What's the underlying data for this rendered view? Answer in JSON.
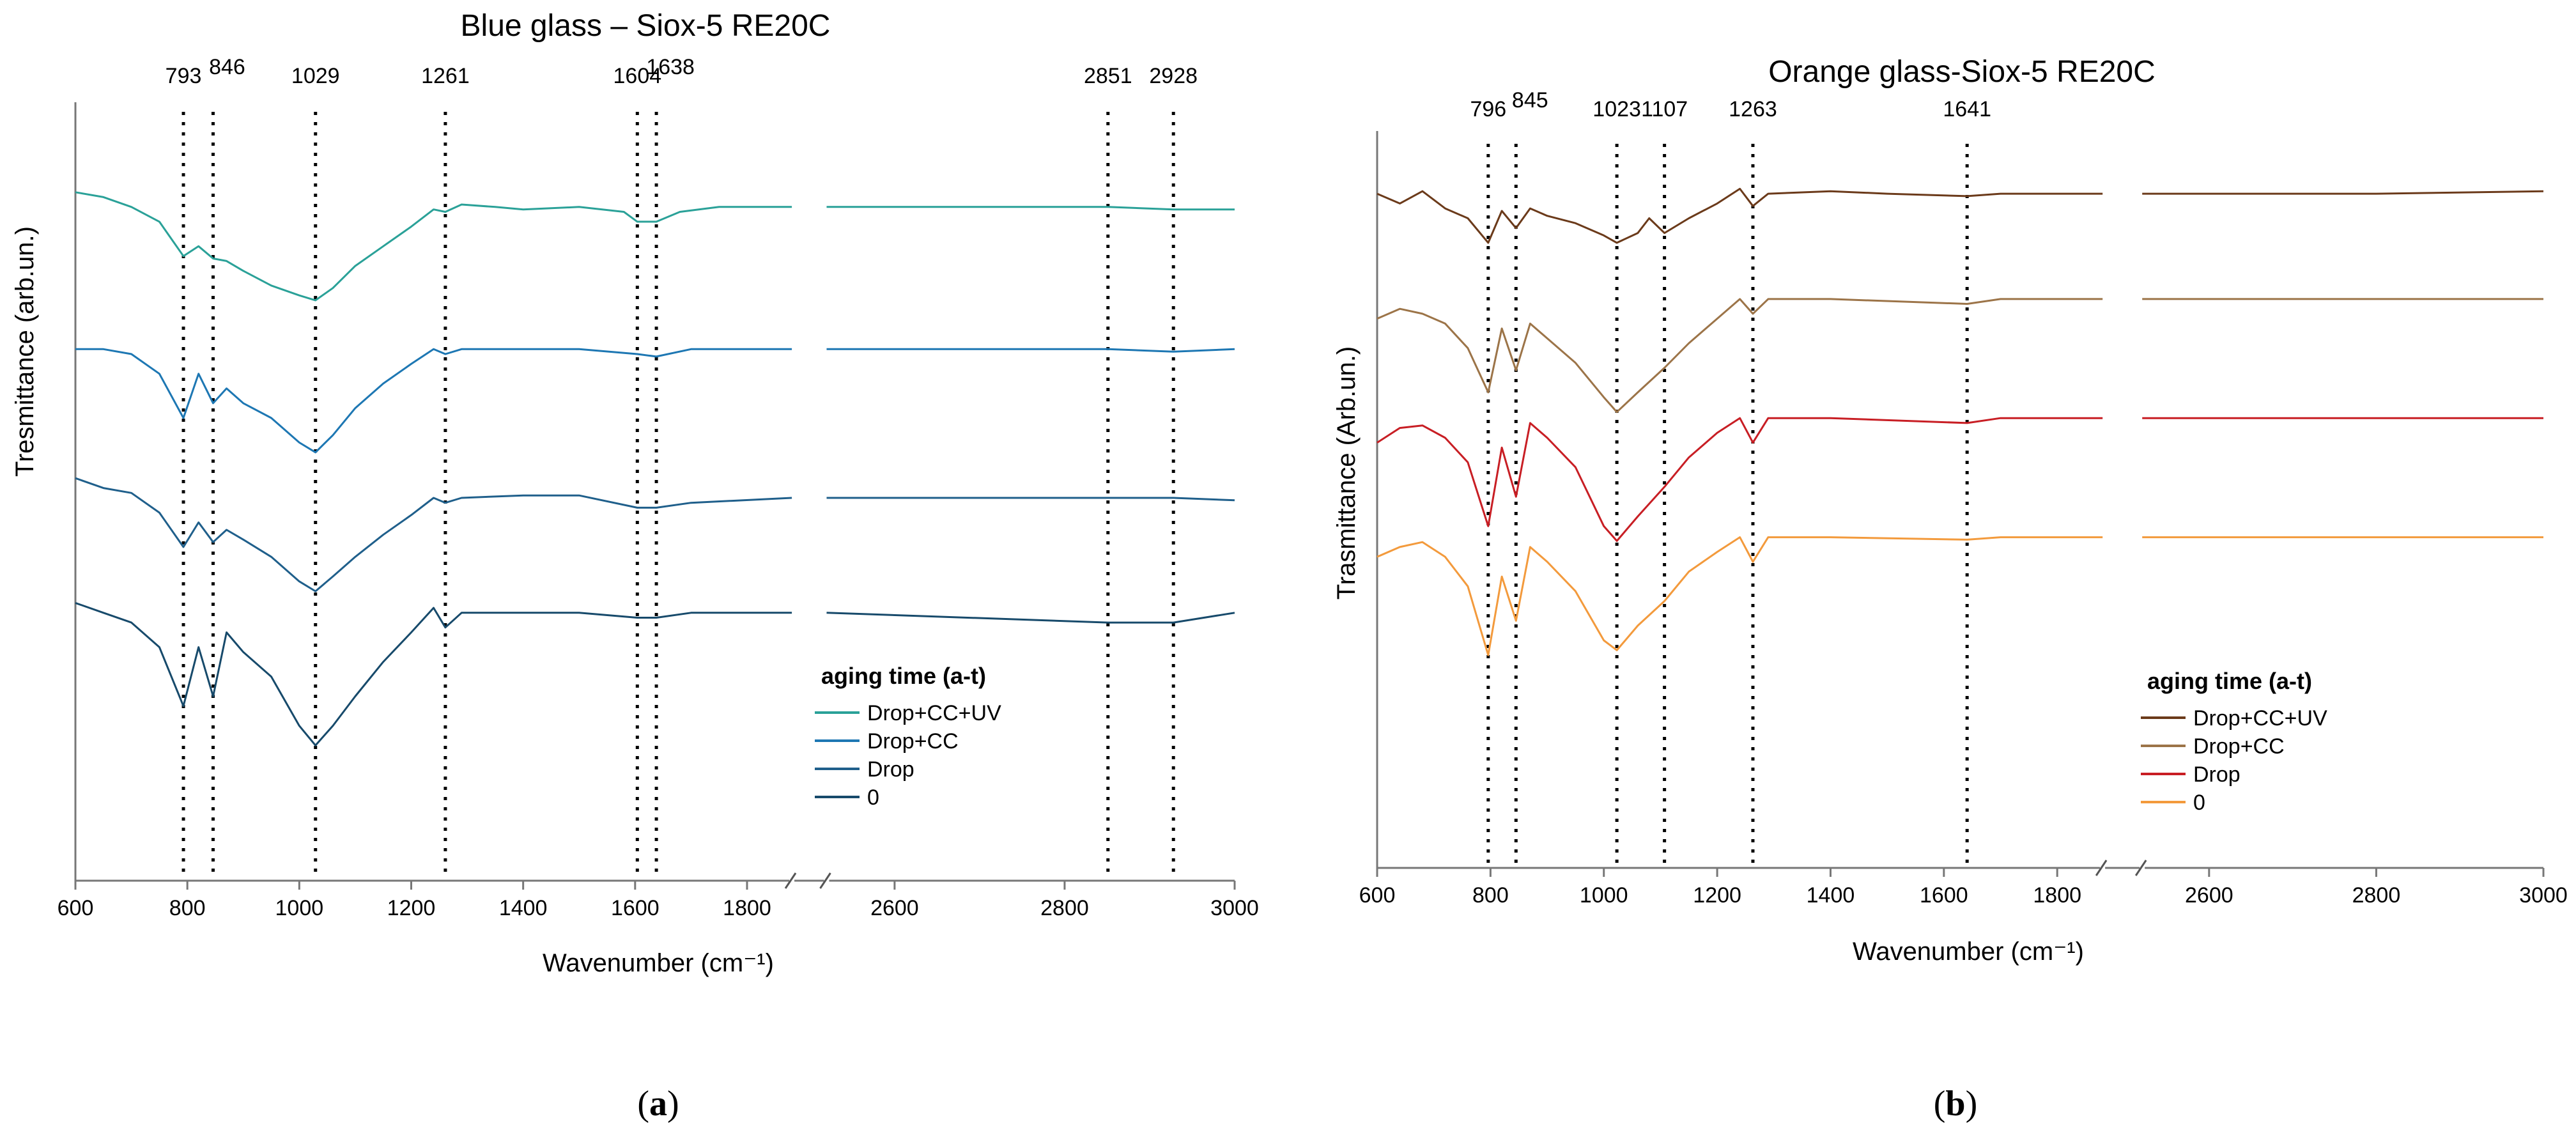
{
  "figure": {
    "panel_labels": [
      "(a)",
      "(b)"
    ],
    "panel_letters": [
      "a",
      "b"
    ]
  },
  "chart_data": [
    {
      "type": "line",
      "title": "Blue glass – Siox-5 RE20C",
      "xlabel": "Wavenumber (cm⁻¹)",
      "ylabel": "Tresmittance (arb.un.)",
      "x_ticks": [
        600,
        800,
        1000,
        1200,
        1400,
        1600,
        1800,
        2600,
        2800,
        3000
      ],
      "x_break": [
        1880,
        2520
      ],
      "xlim": [
        600,
        3000
      ],
      "ylim": [
        0,
        1
      ],
      "legend_title": "aging time (a-t)",
      "legend_position": "right",
      "peak_labels": [
        793,
        846,
        1029,
        1261,
        1604,
        1638,
        2851,
        2928
      ],
      "series": [
        {
          "name": "Drop+CC+UV",
          "color": "#2aa198",
          "offset": 0.0,
          "points": [
            [
              600,
              0.08
            ],
            [
              650,
              0.1
            ],
            [
              700,
              0.14
            ],
            [
              750,
              0.2
            ],
            [
              793,
              0.34
            ],
            [
              820,
              0.3
            ],
            [
              846,
              0.35
            ],
            [
              870,
              0.36
            ],
            [
              900,
              0.4
            ],
            [
              950,
              0.46
            ],
            [
              1000,
              0.5
            ],
            [
              1029,
              0.52
            ],
            [
              1060,
              0.47
            ],
            [
              1100,
              0.38
            ],
            [
              1150,
              0.3
            ],
            [
              1200,
              0.22
            ],
            [
              1240,
              0.15
            ],
            [
              1261,
              0.16
            ],
            [
              1290,
              0.13
            ],
            [
              1350,
              0.14
            ],
            [
              1400,
              0.15
            ],
            [
              1500,
              0.14
            ],
            [
              1580,
              0.16
            ],
            [
              1604,
              0.2
            ],
            [
              1638,
              0.2
            ],
            [
              1680,
              0.16
            ],
            [
              1750,
              0.14
            ],
            [
              1880,
              0.14
            ],
            [
              2520,
              0.14
            ],
            [
              2700,
              0.14
            ],
            [
              2851,
              0.14
            ],
            [
              2928,
              0.15
            ],
            [
              3000,
              0.15
            ]
          ]
        },
        {
          "name": "Drop+CC",
          "color": "#1d77b3",
          "offset": 0.18,
          "points": [
            [
              600,
              0.2
            ],
            [
              650,
              0.2
            ],
            [
              700,
              0.22
            ],
            [
              750,
              0.3
            ],
            [
              793,
              0.48
            ],
            [
              820,
              0.3
            ],
            [
              846,
              0.42
            ],
            [
              870,
              0.36
            ],
            [
              900,
              0.42
            ],
            [
              950,
              0.48
            ],
            [
              1000,
              0.58
            ],
            [
              1029,
              0.62
            ],
            [
              1060,
              0.55
            ],
            [
              1100,
              0.44
            ],
            [
              1150,
              0.34
            ],
            [
              1200,
              0.26
            ],
            [
              1240,
              0.2
            ],
            [
              1261,
              0.22
            ],
            [
              1290,
              0.2
            ],
            [
              1350,
              0.2
            ],
            [
              1500,
              0.2
            ],
            [
              1604,
              0.22
            ],
            [
              1638,
              0.23
            ],
            [
              1700,
              0.2
            ],
            [
              1880,
              0.2
            ],
            [
              2520,
              0.2
            ],
            [
              2851,
              0.2
            ],
            [
              2928,
              0.21
            ],
            [
              3000,
              0.2
            ]
          ]
        },
        {
          "name": "Drop",
          "color": "#1f5f8b",
          "offset": 0.39,
          "points": [
            [
              600,
              0.12
            ],
            [
              650,
              0.16
            ],
            [
              700,
              0.18
            ],
            [
              750,
              0.26
            ],
            [
              793,
              0.4
            ],
            [
              820,
              0.3
            ],
            [
              846,
              0.38
            ],
            [
              870,
              0.33
            ],
            [
              900,
              0.37
            ],
            [
              950,
              0.44
            ],
            [
              1000,
              0.54
            ],
            [
              1029,
              0.58
            ],
            [
              1060,
              0.52
            ],
            [
              1100,
              0.44
            ],
            [
              1150,
              0.35
            ],
            [
              1200,
              0.27
            ],
            [
              1240,
              0.2
            ],
            [
              1261,
              0.22
            ],
            [
              1290,
              0.2
            ],
            [
              1400,
              0.19
            ],
            [
              1500,
              0.19
            ],
            [
              1604,
              0.24
            ],
            [
              1638,
              0.24
            ],
            [
              1700,
              0.22
            ],
            [
              1880,
              0.2
            ],
            [
              2520,
              0.2
            ],
            [
              2851,
              0.2
            ],
            [
              2928,
              0.2
            ],
            [
              3000,
              0.21
            ]
          ]
        },
        {
          "name": "0",
          "color": "#174a6b",
          "offset": 0.58,
          "points": [
            [
              600,
              0.08
            ],
            [
              650,
              0.12
            ],
            [
              700,
              0.16
            ],
            [
              750,
              0.26
            ],
            [
              793,
              0.5
            ],
            [
              820,
              0.26
            ],
            [
              846,
              0.46
            ],
            [
              870,
              0.2
            ],
            [
              900,
              0.28
            ],
            [
              950,
              0.38
            ],
            [
              1000,
              0.58
            ],
            [
              1029,
              0.66
            ],
            [
              1060,
              0.58
            ],
            [
              1100,
              0.46
            ],
            [
              1150,
              0.32
            ],
            [
              1200,
              0.2
            ],
            [
              1240,
              0.1
            ],
            [
              1261,
              0.18
            ],
            [
              1290,
              0.12
            ],
            [
              1400,
              0.12
            ],
            [
              1500,
              0.12
            ],
            [
              1604,
              0.14
            ],
            [
              1638,
              0.14
            ],
            [
              1700,
              0.12
            ],
            [
              1880,
              0.12
            ],
            [
              2520,
              0.12
            ],
            [
              2851,
              0.16
            ],
            [
              2928,
              0.16
            ],
            [
              3000,
              0.12
            ]
          ]
        }
      ]
    },
    {
      "type": "line",
      "title": "Orange glass-Siox-5 RE20C",
      "xlabel": "Wavenumber (cm⁻¹)",
      "ylabel": "Trasmittance (Arb.un.)",
      "x_ticks": [
        600,
        800,
        1000,
        1200,
        1400,
        1600,
        1800,
        2600,
        2800,
        3000
      ],
      "x_break": [
        1880,
        2520
      ],
      "xlim": [
        600,
        3000
      ],
      "ylim": [
        0,
        1
      ],
      "legend_title": "aging time (a-t)",
      "legend_position": "right",
      "peak_labels": [
        796,
        845,
        1023,
        1107,
        1263,
        1641
      ],
      "series": [
        {
          "name": "Drop+CC+UV",
          "color": "#6b3a1a",
          "offset": 0.0,
          "points": [
            [
              600,
              0.06
            ],
            [
              640,
              0.1
            ],
            [
              680,
              0.05
            ],
            [
              720,
              0.12
            ],
            [
              760,
              0.16
            ],
            [
              796,
              0.26
            ],
            [
              820,
              0.13
            ],
            [
              845,
              0.2
            ],
            [
              870,
              0.12
            ],
            [
              900,
              0.15
            ],
            [
              950,
              0.18
            ],
            [
              1000,
              0.23
            ],
            [
              1023,
              0.26
            ],
            [
              1060,
              0.22
            ],
            [
              1080,
              0.16
            ],
            [
              1107,
              0.22
            ],
            [
              1150,
              0.16
            ],
            [
              1200,
              0.1
            ],
            [
              1240,
              0.04
            ],
            [
              1263,
              0.11
            ],
            [
              1290,
              0.06
            ],
            [
              1400,
              0.05
            ],
            [
              1500,
              0.06
            ],
            [
              1641,
              0.07
            ],
            [
              1700,
              0.06
            ],
            [
              1880,
              0.06
            ],
            [
              2520,
              0.06
            ],
            [
              2800,
              0.06
            ],
            [
              3000,
              0.05
            ]
          ]
        },
        {
          "name": "Drop+CC",
          "color": "#9c7448",
          "offset": 0.16,
          "points": [
            [
              600,
              0.12
            ],
            [
              640,
              0.08
            ],
            [
              680,
              0.1
            ],
            [
              720,
              0.14
            ],
            [
              760,
              0.24
            ],
            [
              796,
              0.42
            ],
            [
              820,
              0.16
            ],
            [
              845,
              0.33
            ],
            [
              870,
              0.14
            ],
            [
              900,
              0.2
            ],
            [
              950,
              0.3
            ],
            [
              1000,
              0.44
            ],
            [
              1023,
              0.5
            ],
            [
              1060,
              0.42
            ],
            [
              1107,
              0.32
            ],
            [
              1150,
              0.22
            ],
            [
              1200,
              0.12
            ],
            [
              1240,
              0.04
            ],
            [
              1263,
              0.1
            ],
            [
              1290,
              0.04
            ],
            [
              1400,
              0.04
            ],
            [
              1641,
              0.06
            ],
            [
              1700,
              0.04
            ],
            [
              1880,
              0.04
            ],
            [
              2520,
              0.04
            ],
            [
              3000,
              0.04
            ]
          ]
        },
        {
          "name": "Drop",
          "color": "#c81e24",
          "offset": 0.34,
          "points": [
            [
              600,
              0.12
            ],
            [
              640,
              0.06
            ],
            [
              680,
              0.05
            ],
            [
              720,
              0.1
            ],
            [
              760,
              0.2
            ],
            [
              796,
              0.46
            ],
            [
              820,
              0.14
            ],
            [
              845,
              0.34
            ],
            [
              870,
              0.04
            ],
            [
              900,
              0.1
            ],
            [
              950,
              0.22
            ],
            [
              1000,
              0.46
            ],
            [
              1023,
              0.52
            ],
            [
              1060,
              0.42
            ],
            [
              1107,
              0.3
            ],
            [
              1150,
              0.18
            ],
            [
              1200,
              0.08
            ],
            [
              1240,
              0.02
            ],
            [
              1263,
              0.12
            ],
            [
              1290,
              0.02
            ],
            [
              1400,
              0.02
            ],
            [
              1641,
              0.04
            ],
            [
              1700,
              0.02
            ],
            [
              1880,
              0.02
            ],
            [
              2520,
              0.02
            ],
            [
              3000,
              0.02
            ]
          ]
        },
        {
          "name": "0",
          "color": "#f39a3c",
          "offset": 0.52,
          "points": [
            [
              600,
              0.08
            ],
            [
              640,
              0.04
            ],
            [
              680,
              0.02
            ],
            [
              720,
              0.08
            ],
            [
              760,
              0.2
            ],
            [
              796,
              0.48
            ],
            [
              820,
              0.16
            ],
            [
              845,
              0.34
            ],
            [
              870,
              0.04
            ],
            [
              900,
              0.1
            ],
            [
              950,
              0.22
            ],
            [
              1000,
              0.42
            ],
            [
              1023,
              0.46
            ],
            [
              1060,
              0.36
            ],
            [
              1107,
              0.26
            ],
            [
              1150,
              0.14
            ],
            [
              1200,
              0.06
            ],
            [
              1240,
              0.0
            ],
            [
              1263,
              0.1
            ],
            [
              1290,
              0.0
            ],
            [
              1400,
              0.0
            ],
            [
              1641,
              0.01
            ],
            [
              1700,
              0.0
            ],
            [
              1880,
              0.0
            ],
            [
              2520,
              0.0
            ],
            [
              3000,
              0.0
            ]
          ]
        }
      ]
    }
  ]
}
